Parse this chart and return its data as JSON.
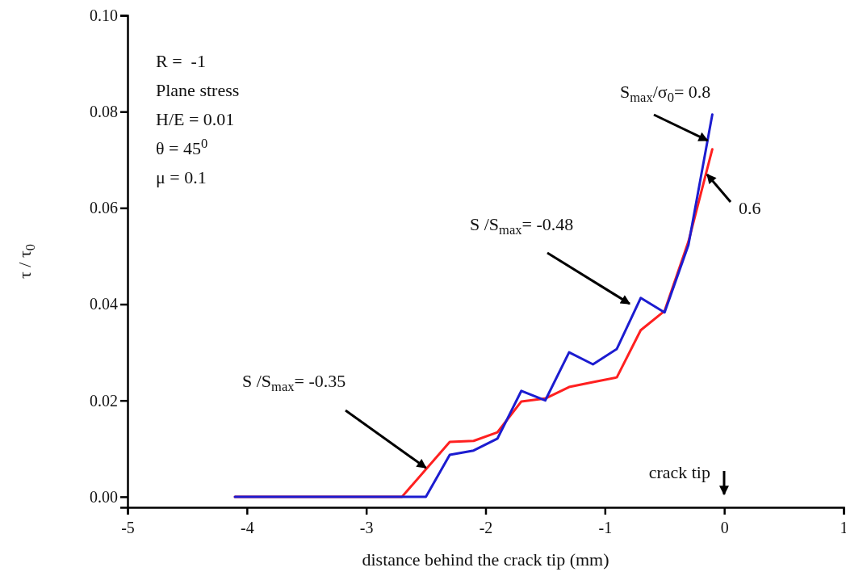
{
  "chart_data": {
    "type": "line",
    "xlabel": "distance behind the crack tip (mm)",
    "ylabel": "τ / τ$_{0}$",
    "xlim": [
      -5,
      1
    ],
    "xticks": [
      -5,
      -4,
      -3,
      -2,
      -1,
      0,
      1
    ],
    "ylim": [
      -0.0022,
      0.1
    ],
    "yticks": [
      {
        "value": 0,
        "label": "0.00"
      },
      {
        "value": 0.02,
        "label": "0.02"
      },
      {
        "value": 0.04,
        "label": "0.04"
      },
      {
        "value": 0.06,
        "label": "0.06"
      },
      {
        "value": 0.08,
        "label": "0.08"
      },
      {
        "value": 0.1,
        "label": "0.10"
      }
    ],
    "grid": false,
    "marker": "none",
    "line_style": "solid",
    "series": [
      {
        "color": "#ff2020",
        "x": [
          -4.1,
          -2.7,
          -2.3,
          -2.1,
          -1.9,
          -1.7,
          -1.5,
          -1.3,
          -1.1,
          -0.9,
          -0.7,
          -0.5,
          -0.3,
          -0.1
        ],
        "values": [
          0,
          0,
          0.0114,
          0.0116,
          0.0134,
          0.0198,
          0.0204,
          0.0228,
          0.0238,
          0.0248,
          0.0346,
          0.0386,
          0.053,
          0.0722
        ]
      },
      {
        "color": "#1c1cd0",
        "x": [
          -4.1,
          -2.5,
          -2.3,
          -2.1,
          -1.9,
          -1.7,
          -1.5,
          -1.3,
          -1.1,
          -0.9,
          -0.7,
          -0.5,
          -0.3,
          -0.1
        ],
        "values": [
          0,
          0,
          0.0087,
          0.0096,
          0.0121,
          0.022,
          0.02,
          0.03,
          0.0275,
          0.0307,
          0.0413,
          0.0383,
          0.0523,
          0.0794
        ]
      }
    ],
    "annotations": [
      "R =  -1",
      "Plane stress",
      "H/E = 0.01",
      "θ = 45$^{0}$",
      "μ = 0.1",
      {
        "text": "S /S$_{max}$= -0.35",
        "x": -2.5,
        "y": 0.006
      },
      "S /S$_{max}$= -0.48",
      {
        "text": "S$_{max}$/σ$_{0}$= 0.8",
        "x": -0.14,
        "y": 0.074
      },
      "0.6",
      "crack tip"
    ]
  }
}
